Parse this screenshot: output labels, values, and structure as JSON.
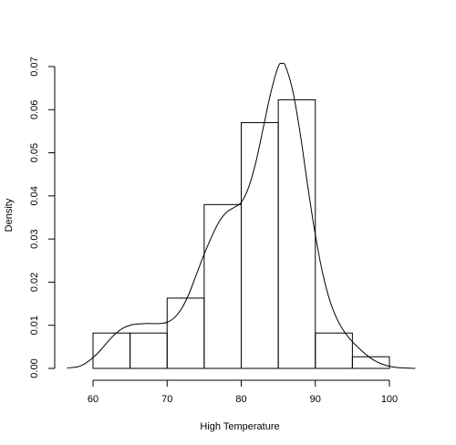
{
  "chart_data": {
    "type": "bar",
    "subtype": "histogram-with-density-curve",
    "xlabel": "High Temperature",
    "ylabel": "Density",
    "xlim": [
      56,
      103.5
    ],
    "ylim": [
      0,
      0.07
    ],
    "x_ticks": [
      60,
      70,
      80,
      90,
      100
    ],
    "y_ticks": [
      0.0,
      0.01,
      0.02,
      0.03,
      0.04,
      0.05,
      0.06,
      0.07
    ],
    "y_tick_labels": [
      "0.00",
      "0.01",
      "0.02",
      "0.03",
      "0.04",
      "0.05",
      "0.06",
      "0.07"
    ],
    "bins": [
      {
        "start": 60,
        "end": 65,
        "density": 0.0082
      },
      {
        "start": 65,
        "end": 70,
        "density": 0.0082
      },
      {
        "start": 70,
        "end": 75,
        "density": 0.0163
      },
      {
        "start": 75,
        "end": 80,
        "density": 0.038
      },
      {
        "start": 80,
        "end": 85,
        "density": 0.057
      },
      {
        "start": 85,
        "end": 90,
        "density": 0.0623
      },
      {
        "start": 90,
        "end": 95,
        "density": 0.0082
      },
      {
        "start": 95,
        "end": 100,
        "density": 0.0027
      }
    ],
    "density_curve": {
      "x": [
        56.5,
        58,
        59,
        60,
        61,
        62,
        63,
        64,
        65,
        66,
        67,
        68,
        69,
        70,
        71,
        72,
        73,
        74,
        75,
        76,
        77,
        78,
        79,
        80,
        81,
        82,
        83,
        84,
        85,
        85.5,
        86,
        87,
        88,
        89,
        90,
        91,
        92,
        93,
        94,
        95,
        96,
        97,
        98,
        99,
        100,
        101,
        102,
        103.5
      ],
      "y": [
        0.0001,
        0.0004,
        0.0012,
        0.0025,
        0.0042,
        0.0062,
        0.008,
        0.0093,
        0.01,
        0.0103,
        0.0104,
        0.0104,
        0.0104,
        0.0107,
        0.0118,
        0.014,
        0.0175,
        0.022,
        0.0265,
        0.0305,
        0.034,
        0.0362,
        0.0373,
        0.0385,
        0.042,
        0.048,
        0.056,
        0.064,
        0.07,
        0.0707,
        0.07,
        0.064,
        0.054,
        0.042,
        0.031,
        0.022,
        0.0155,
        0.0112,
        0.0083,
        0.0062,
        0.0045,
        0.003,
        0.0018,
        0.001,
        0.0005,
        0.0002,
        0.0001,
        0.0
      ]
    }
  }
}
